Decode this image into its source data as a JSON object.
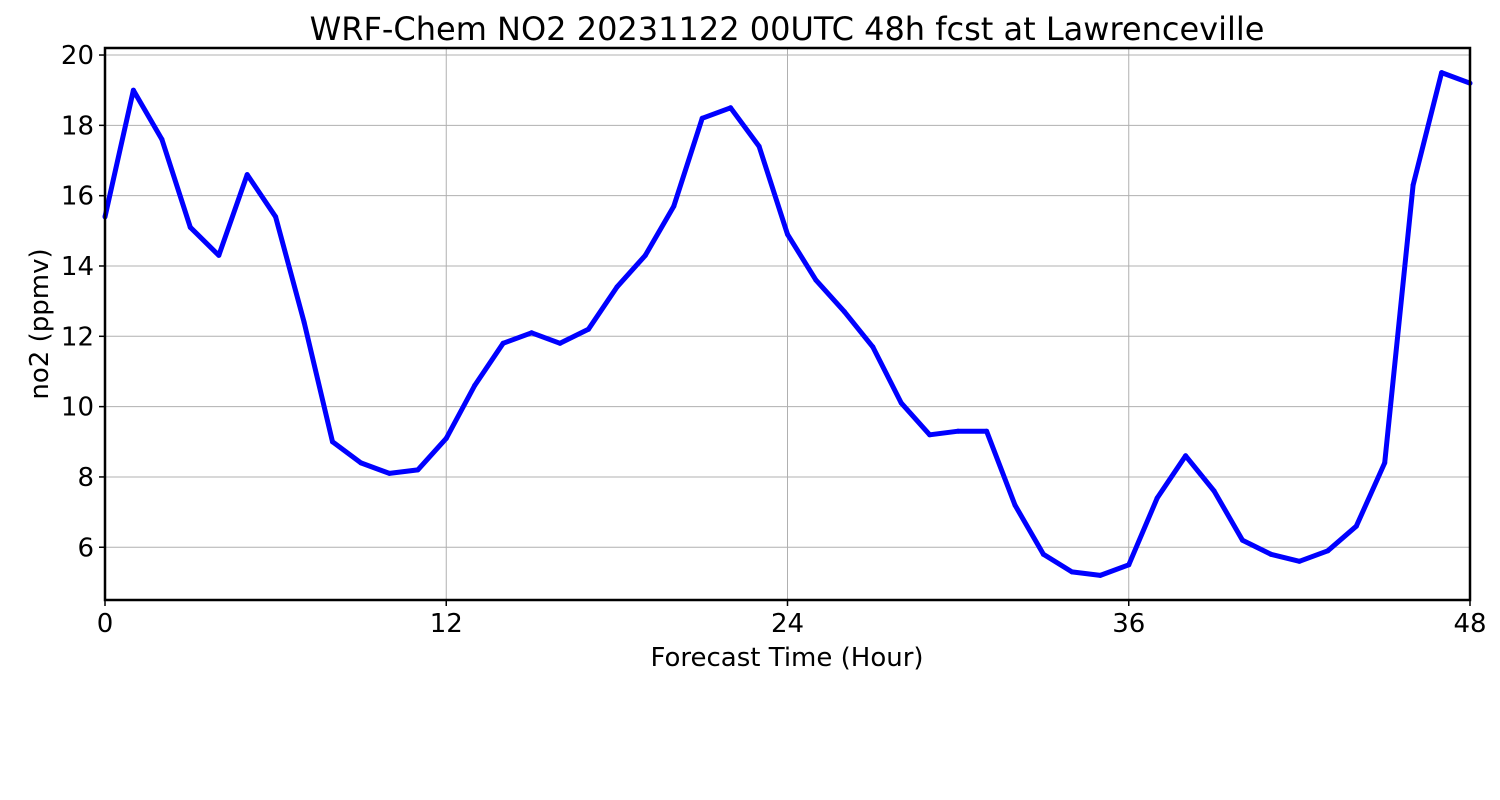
{
  "chart_data": {
    "type": "line",
    "title": "WRF-Chem NO2  20231122 00UTC 48h fcst at Lawrenceville",
    "xlabel": "Forecast Time (Hour)",
    "ylabel": "no2  (ppmv)",
    "xlim": [
      0,
      48
    ],
    "ylim": [
      4.5,
      20.2
    ],
    "xticks": [
      0,
      12,
      24,
      36,
      48
    ],
    "yticks": [
      6,
      8,
      10,
      12,
      14,
      16,
      18,
      20
    ],
    "grid": true,
    "series": [
      {
        "color": "#0000ff",
        "x": [
          0,
          1,
          2,
          3,
          4,
          5,
          6,
          7,
          8,
          9,
          10,
          11,
          12,
          13,
          14,
          15,
          16,
          17,
          18,
          19,
          20,
          21,
          22,
          23,
          24,
          25,
          26,
          27,
          28,
          29,
          30,
          31,
          32,
          33,
          34,
          35,
          36,
          37,
          38,
          39,
          40,
          41,
          42,
          43,
          44,
          45,
          46,
          47,
          48
        ],
        "values": [
          15.4,
          19.0,
          17.6,
          15.1,
          14.3,
          16.6,
          15.4,
          12.4,
          9.0,
          8.4,
          8.1,
          8.2,
          9.1,
          10.6,
          11.8,
          12.1,
          11.8,
          12.2,
          13.4,
          14.3,
          15.7,
          18.2,
          18.5,
          17.4,
          14.9,
          13.6,
          12.7,
          11.7,
          10.1,
          9.2,
          9.3,
          9.3,
          7.2,
          5.8,
          5.3,
          5.2,
          5.5,
          7.4,
          8.6,
          7.6,
          6.2,
          5.8,
          5.6,
          5.9,
          6.6,
          8.4,
          16.3,
          19.5,
          19.2
        ]
      }
    ]
  }
}
